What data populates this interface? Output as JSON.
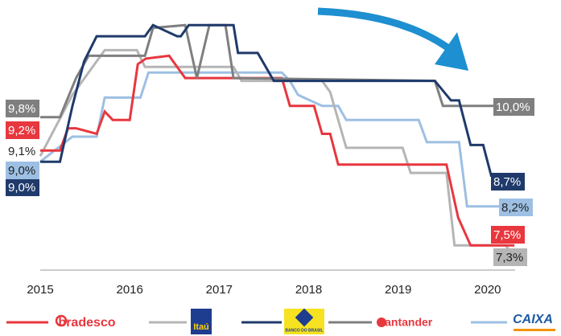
{
  "chart_data": {
    "type": "line",
    "xlim": [
      2014.55,
      2020.82
    ],
    "ylim": [
      7,
      11.9
    ],
    "xticks": [
      2015,
      2016,
      2017,
      2018,
      2019,
      2020
    ],
    "series": [
      {
        "name": "bradesco",
        "color": "#e8373e",
        "x": [
          2015,
          2015.22,
          2015.31,
          2015.4,
          2015.63,
          2015.72,
          2015.81,
          2016,
          2016.09,
          2016.18,
          2016.44,
          2016.53,
          2016.62,
          2017.7,
          2017.79,
          2018.06,
          2018.15,
          2018.24,
          2018.33,
          2019.54,
          2019.67,
          2019.81,
          2020.3
        ],
        "values": [
          9.2,
          9.2,
          9.6,
          9.6,
          9.5,
          9.9,
          9.75,
          9.75,
          10.75,
          10.85,
          10.9,
          10.7,
          10.5,
          10.5,
          10.0,
          10.0,
          9.5,
          9.5,
          8.95,
          8.95,
          8.0,
          7.5,
          7.5
        ],
        "value_labels": [
          "9,2%",
          null,
          null,
          null,
          null,
          null,
          null,
          null,
          null,
          null,
          null,
          null,
          null,
          null,
          null,
          null,
          null,
          null,
          null,
          null,
          null,
          null,
          "7,5%"
        ]
      },
      {
        "name": "Itaú",
        "color": "#b5b5b5",
        "x": [
          2015,
          2015.36,
          2015.72,
          2016.08,
          2016.17,
          2017.16,
          2017.25,
          2018.15,
          2018.24,
          2018.42,
          2019.05,
          2019.14,
          2019.54,
          2019.63,
          2020.2,
          2020.3
        ],
        "values": [
          9.1,
          10.2,
          11.0,
          11.0,
          10.7,
          10.7,
          10.45,
          10.45,
          10.25,
          9.25,
          9.25,
          8.8,
          8.8,
          7.5,
          7.5,
          7.3
        ],
        "value_labels": [
          "9,1%",
          null,
          null,
          null,
          null,
          null,
          null,
          null,
          null,
          null,
          null,
          null,
          null,
          null,
          null,
          "7,3%"
        ]
      },
      {
        "name": "BANCO DO BRASIL",
        "color": "#1f3a6b",
        "x": [
          2015,
          2015.22,
          2015.36,
          2015.49,
          2015.63,
          2016.17,
          2016.26,
          2016.53,
          2016.57,
          2016.66,
          2017.16,
          2017.21,
          2017.43,
          2017.61,
          2019.41,
          2019.59,
          2019.68,
          2019.81,
          2019.95,
          2020.04,
          2020.3
        ],
        "values": [
          9.0,
          9.0,
          10.0,
          10.8,
          11.25,
          11.25,
          11.45,
          11.25,
          11.25,
          11.45,
          11.45,
          10.95,
          10.95,
          10.45,
          10.45,
          10.1,
          10.1,
          9.3,
          9.3,
          8.75,
          8.7
        ],
        "value_labels": [
          "9,0%",
          null,
          null,
          null,
          null,
          null,
          null,
          null,
          null,
          null,
          null,
          null,
          null,
          null,
          null,
          null,
          null,
          null,
          null,
          null,
          "8,7%"
        ]
      },
      {
        "name": "Santander",
        "color": "#7f7f7f",
        "x": [
          2015,
          2015.22,
          2015.4,
          2015.54,
          2016.17,
          2016.26,
          2016.62,
          2016.75,
          2016.89,
          2017.07,
          2017.16,
          2019.41,
          2019.5,
          2020.3
        ],
        "values": [
          9.8,
          9.8,
          10.5,
          10.9,
          10.9,
          11.4,
          11.45,
          10.5,
          11.45,
          11.45,
          10.5,
          10.45,
          10.0,
          10.0
        ],
        "value_labels": [
          "9,8%",
          null,
          null,
          null,
          null,
          null,
          null,
          null,
          null,
          null,
          null,
          null,
          null,
          "10,0%"
        ]
      },
      {
        "name": "CAIXA",
        "color": "#9dbfe3",
        "x": [
          2015,
          2015.36,
          2015.63,
          2015.72,
          2016.12,
          2016.21,
          2017.7,
          2017.79,
          2017.88,
          2018.15,
          2018.33,
          2018.42,
          2019.23,
          2019.32,
          2019.68,
          2019.77,
          2020.3
        ],
        "values": [
          9.0,
          9.45,
          9.45,
          10.15,
          10.15,
          10.6,
          10.6,
          10.45,
          10.2,
          10.0,
          10.0,
          9.75,
          9.75,
          9.35,
          9.35,
          8.2,
          8.2
        ],
        "value_labels": [
          "9,0%",
          null,
          null,
          null,
          null,
          null,
          null,
          null,
          null,
          null,
          null,
          null,
          null,
          null,
          null,
          null,
          "8,2%"
        ]
      }
    ]
  }
}
